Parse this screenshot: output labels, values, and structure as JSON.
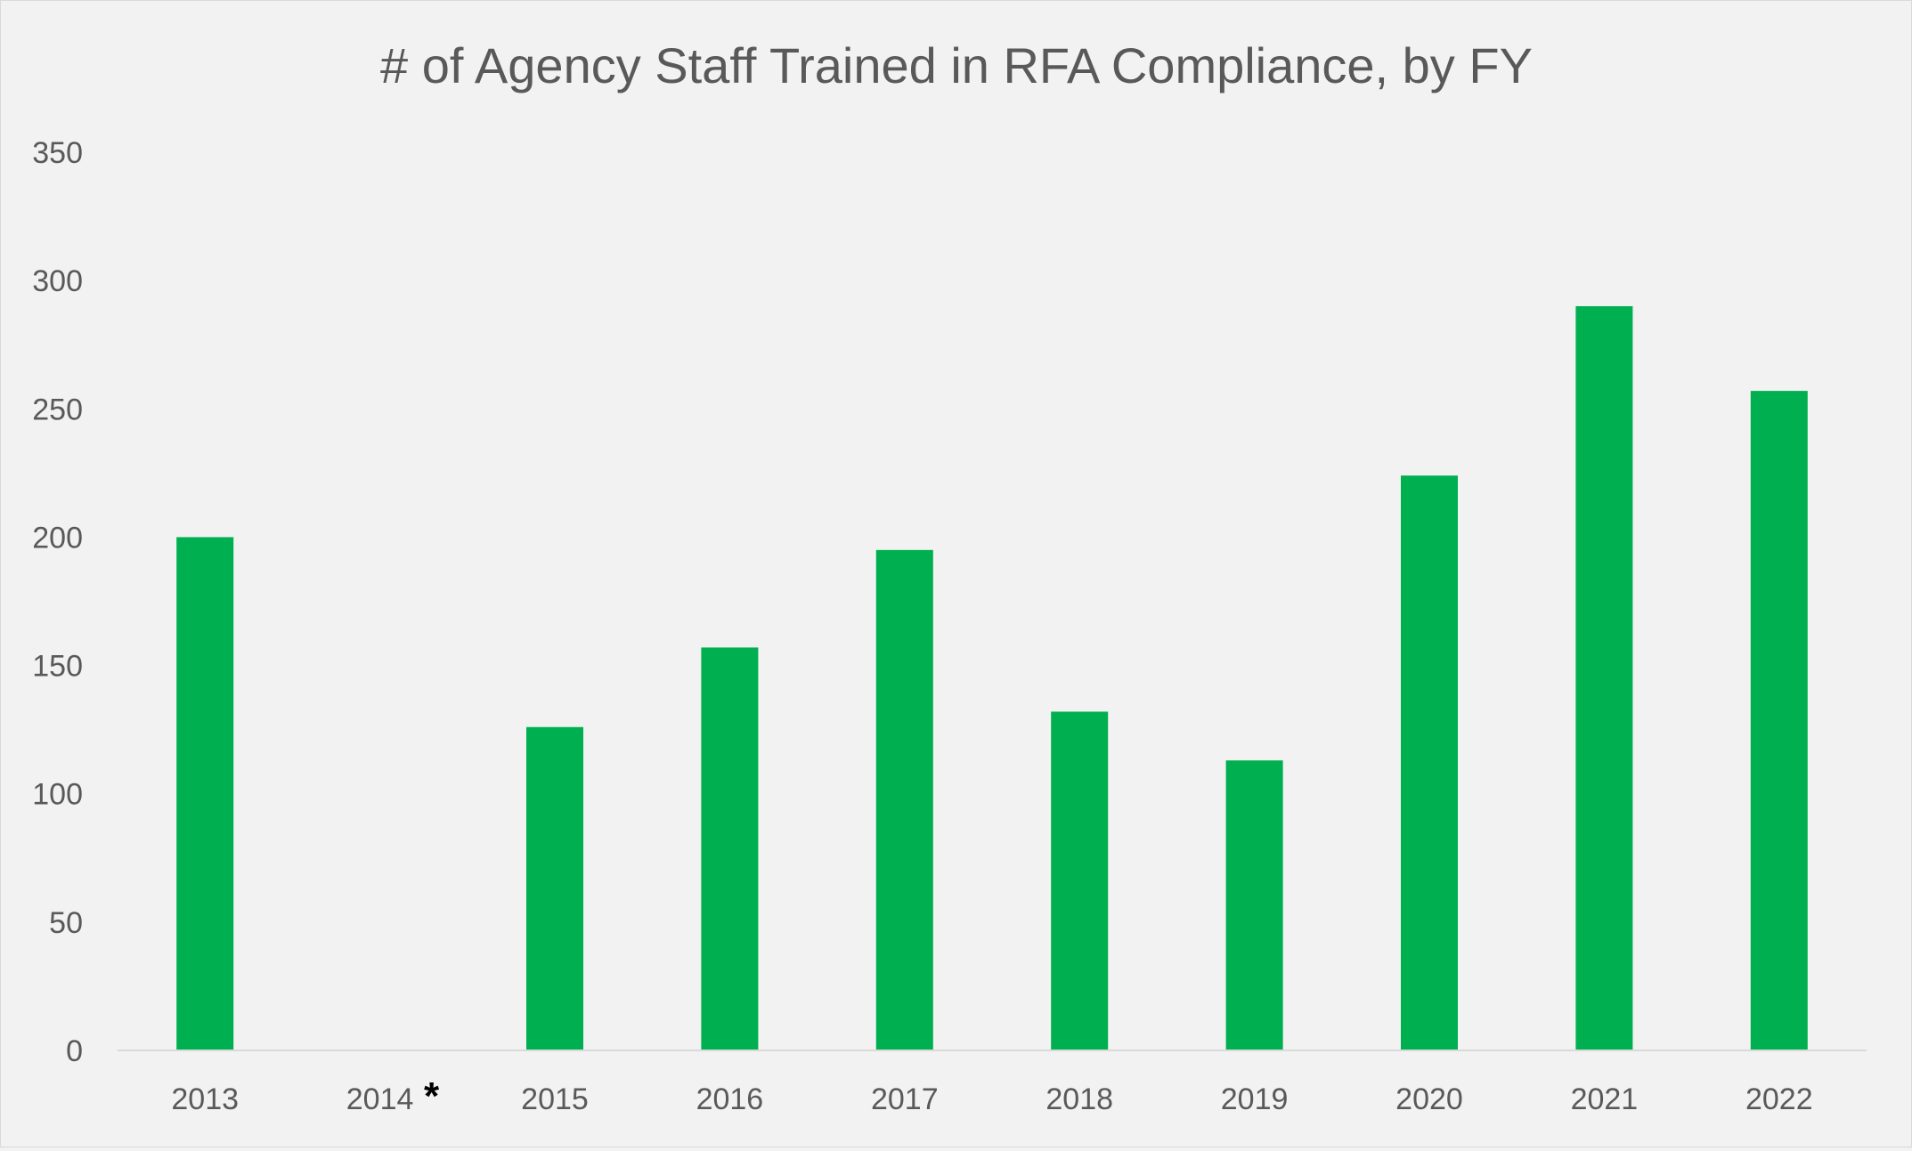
{
  "chart_data": {
    "type": "bar",
    "title": "# of Agency Staff Trained in RFA Compliance, by FY",
    "xlabel": "",
    "ylabel": "",
    "categories": [
      "2013",
      "2014",
      "2015",
      "2016",
      "2017",
      "2018",
      "2019",
      "2020",
      "2021",
      "2022"
    ],
    "annotations": {
      "2014": "*"
    },
    "values": [
      200,
      null,
      126,
      157,
      195,
      132,
      113,
      224,
      290,
      257
    ],
    "ylim": [
      0,
      350
    ],
    "yticks": [
      0,
      50,
      100,
      150,
      200,
      250,
      300,
      350
    ],
    "grid": false,
    "legend": "none",
    "bar_color": "#00b050"
  }
}
